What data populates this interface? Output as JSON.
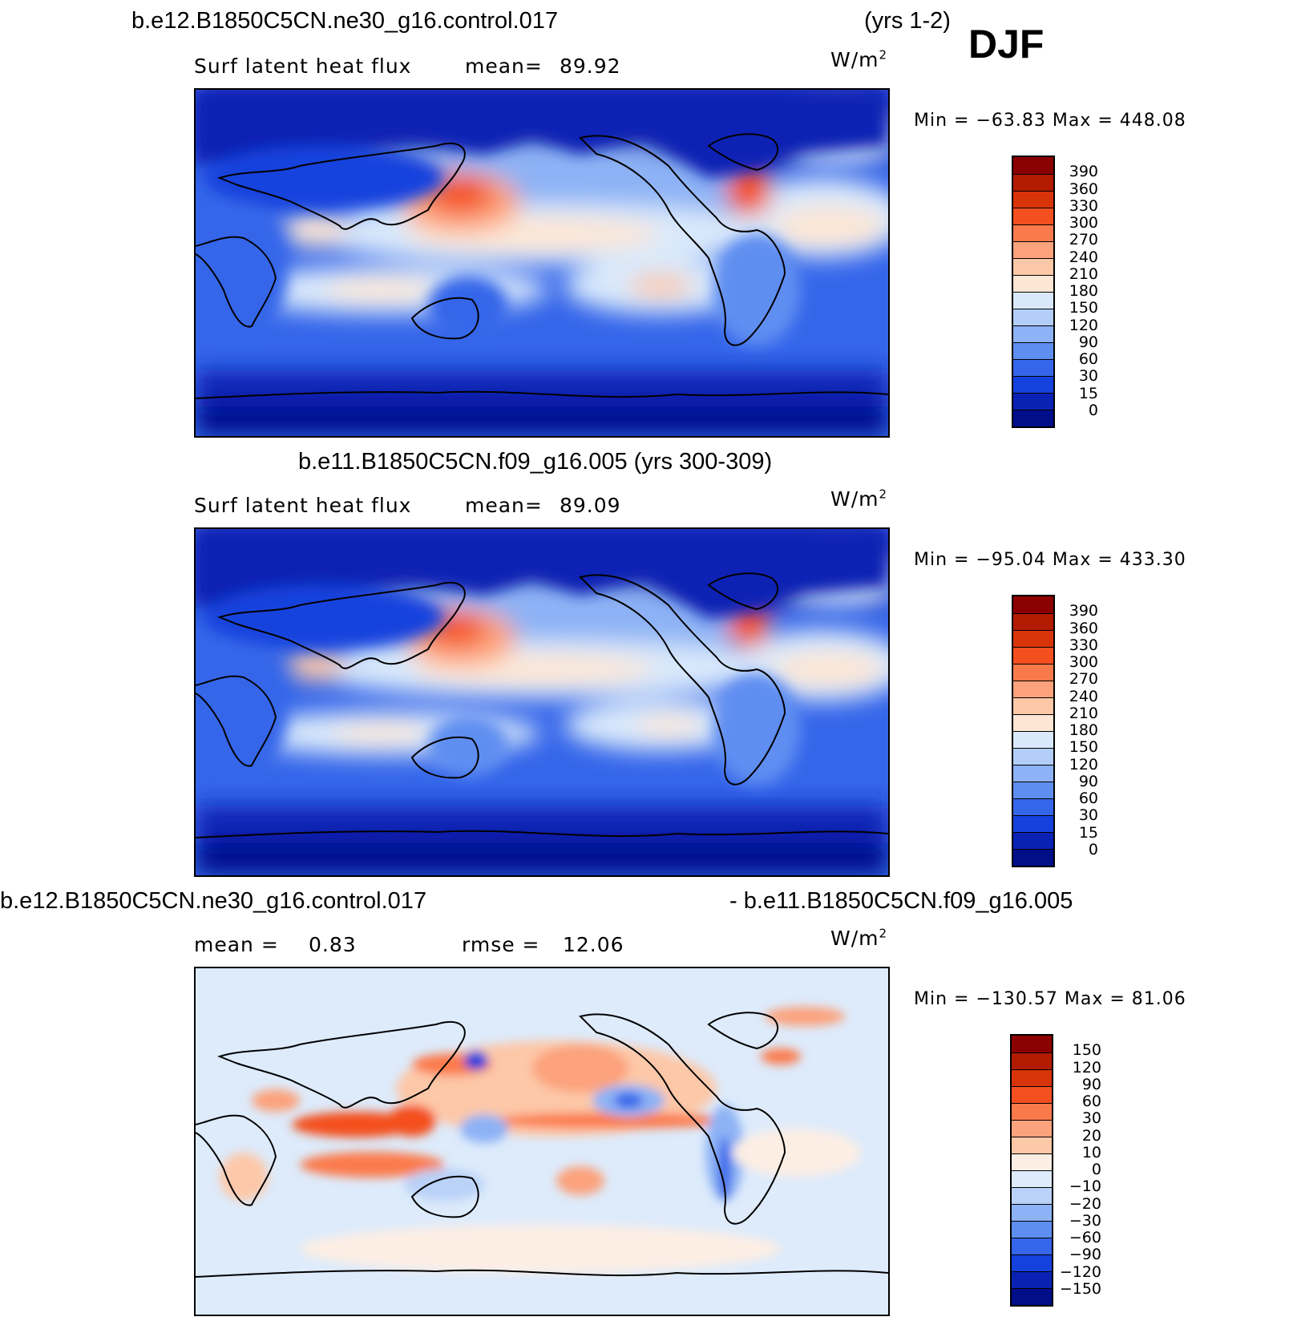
{
  "header": {
    "case_title": "b.e12.B1850C5CN.ne30_g16.control.017",
    "years": "(yrs 1-2)",
    "season": "DJF"
  },
  "panels": [
    {
      "id": "test",
      "title": "",
      "variable": "Surf latent heat flux",
      "mean_label": "mean=",
      "mean_value": "89.92",
      "units": "W/m",
      "units_sup": "2",
      "minmax": "Min = −63.83 Max = 448.08",
      "colorbar": {
        "levels": [
          "390",
          "360",
          "330",
          "300",
          "270",
          "240",
          "210",
          "180",
          "150",
          "120",
          "90",
          "60",
          "30",
          "15",
          "0"
        ],
        "colors": [
          "#8b0000",
          "#b31b00",
          "#d8340a",
          "#f44f1f",
          "#fb7a4b",
          "#fca27c",
          "#fdc8a8",
          "#fde6d4",
          "#d9e9fb",
          "#b3cef8",
          "#8db2f5",
          "#5f8ef1",
          "#3566ea",
          "#1542dd",
          "#0a22b4",
          "#000e8a"
        ]
      }
    },
    {
      "id": "control",
      "title": "b.e11.B1850C5CN.f09_g16.005 (yrs 300-309)",
      "variable": "Surf latent heat flux",
      "mean_label": "mean=",
      "mean_value": "89.09",
      "units": "W/m",
      "units_sup": "2",
      "minmax": "Min = −95.04 Max = 433.30",
      "colorbar": {
        "levels": [
          "390",
          "360",
          "330",
          "300",
          "270",
          "240",
          "210",
          "180",
          "150",
          "120",
          "90",
          "60",
          "30",
          "15",
          "0"
        ],
        "colors": [
          "#8b0000",
          "#b31b00",
          "#d8340a",
          "#f44f1f",
          "#fb7a4b",
          "#fca27c",
          "#fdc8a8",
          "#fde6d4",
          "#d9e9fb",
          "#b3cef8",
          "#8db2f5",
          "#5f8ef1",
          "#3566ea",
          "#1542dd",
          "#0a22b4",
          "#000e8a"
        ]
      }
    },
    {
      "id": "diff",
      "title_left": "b.e12.B1850C5CN.ne30_g16.control.017",
      "title_right": "- b.e11.B1850C5CN.f09_g16.005",
      "mean_label": "mean =",
      "mean_value": "0.83",
      "rmse_label": "rmse =",
      "rmse_value": "12.06",
      "units": "W/m",
      "units_sup": "2",
      "minmax": "Min = −130.57 Max =  81.06",
      "colorbar": {
        "levels": [
          "150",
          "120",
          "90",
          "60",
          "30",
          "20",
          "10",
          "0",
          "−10",
          "−20",
          "−30",
          "−60",
          "−90",
          "−120",
          "−150"
        ],
        "colors": [
          "#8b0000",
          "#b31b00",
          "#d8340a",
          "#f44f1f",
          "#fb7a4b",
          "#fca27c",
          "#fdc8a8",
          "#fdeee4",
          "#ddebfb",
          "#bad2f8",
          "#8db2f5",
          "#5f8ef1",
          "#3566ea",
          "#1542dd",
          "#0a22b4",
          "#000e8a"
        ]
      }
    }
  ]
}
